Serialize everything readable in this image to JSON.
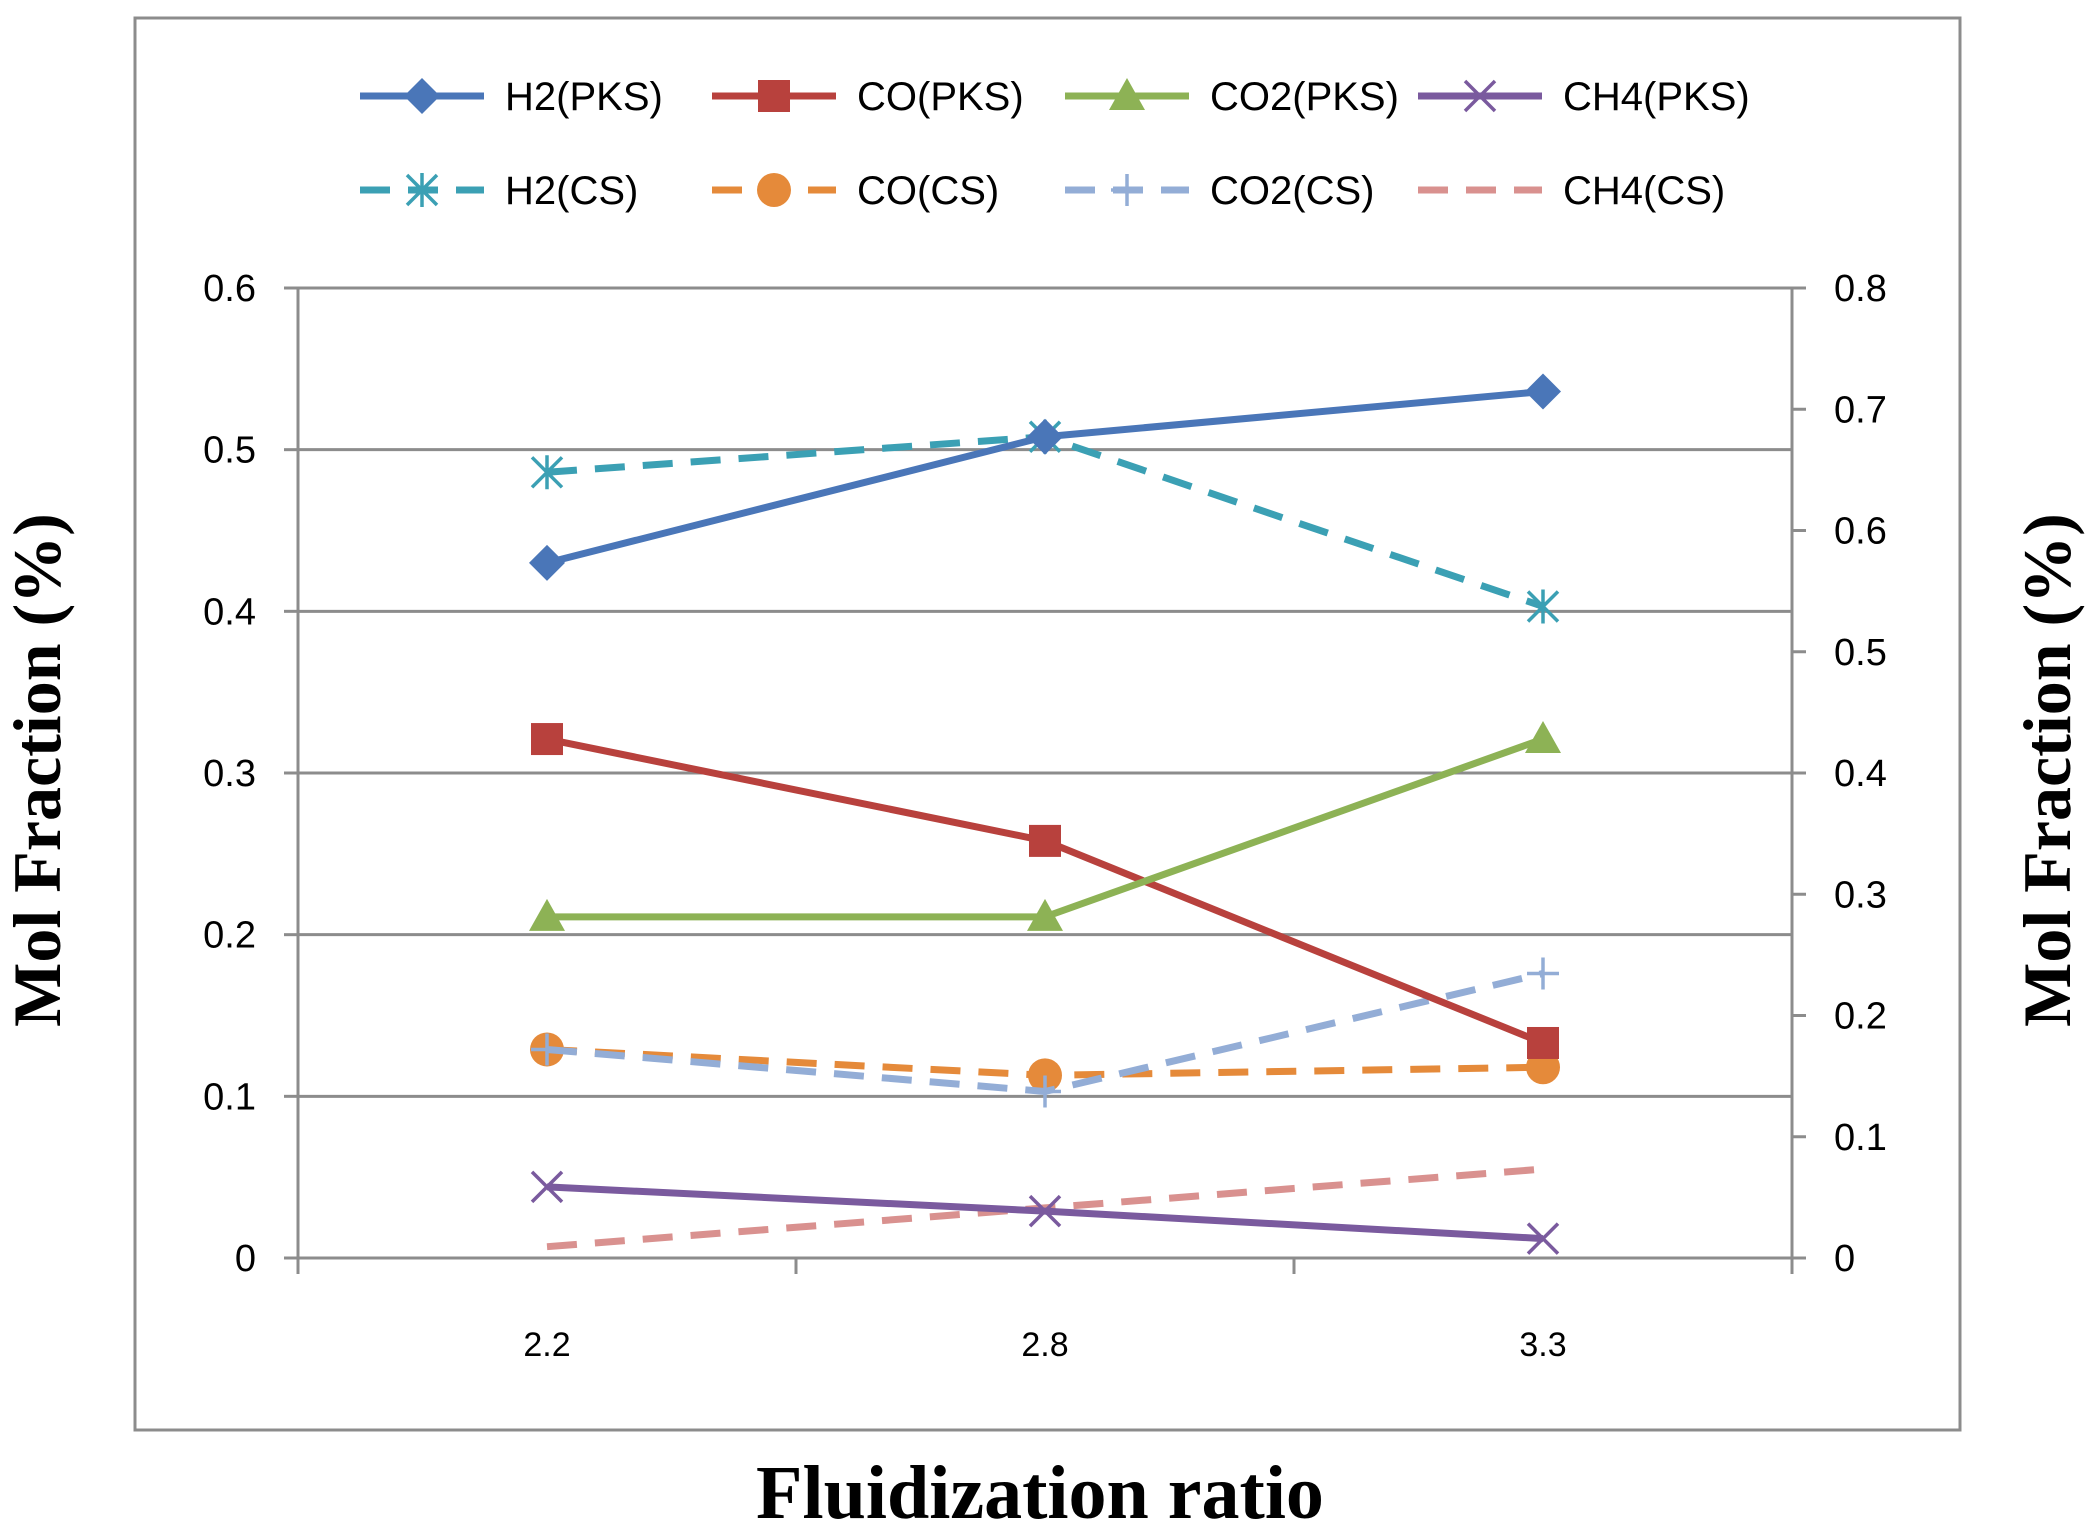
{
  "chart_data": {
    "type": "line",
    "title": "",
    "xlabel": "Fluidization ratio",
    "ylabel": "Mol Fraction (%)",
    "y2label": "Mol Fraction (%)",
    "categories": [
      "2.2",
      "2.8",
      "3.3"
    ],
    "ylim": [
      0,
      0.6
    ],
    "y2lim": [
      0,
      0.8
    ],
    "yticks": [
      "0",
      "0.1",
      "0.2",
      "0.3",
      "0.4",
      "0.5",
      "0.6"
    ],
    "y2ticks": [
      "0",
      "0.1",
      "0.2",
      "0.3",
      "0.4",
      "0.5",
      "0.6",
      "0.7",
      "0.8"
    ],
    "legend_position": "top",
    "grid": true,
    "series": [
      {
        "name": "H2(PKS)",
        "values": [
          0.43,
          0.508,
          0.536
        ],
        "axis": "left",
        "color": "#4A76B8",
        "dash": "solid",
        "marker": "diamond"
      },
      {
        "name": "CO(PKS)",
        "values": [
          0.321,
          0.258,
          0.133
        ],
        "axis": "left",
        "color": "#B8413D",
        "dash": "solid",
        "marker": "square"
      },
      {
        "name": "CO2(PKS)",
        "values": [
          0.211,
          0.211,
          0.321
        ],
        "axis": "left",
        "color": "#8DB255",
        "dash": "solid",
        "marker": "triangle"
      },
      {
        "name": "CH4(PKS)",
        "values": [
          0.044,
          0.029,
          0.012
        ],
        "axis": "left",
        "color": "#7A5A9E",
        "dash": "solid",
        "marker": "x"
      },
      {
        "name": "H2(CS)",
        "values": [
          0.486,
          0.508,
          0.403
        ],
        "axis": "left",
        "color": "#3BA0B4",
        "dash": "dashed",
        "marker": "asterisk"
      },
      {
        "name": "CO(CS)",
        "values": [
          0.129,
          0.113,
          0.118
        ],
        "axis": "left",
        "color": "#E58A3A",
        "dash": "dashed",
        "marker": "circle"
      },
      {
        "name": "CO2(CS)",
        "values": [
          0.129,
          0.103,
          0.176
        ],
        "axis": "left",
        "color": "#93ADD6",
        "dash": "dashed",
        "marker": "plus"
      },
      {
        "name": "CH4(CS)",
        "values": [
          0.007,
          0.031,
          0.055
        ],
        "axis": "left",
        "color": "#D9918F",
        "dash": "dashed",
        "marker": "none"
      }
    ]
  }
}
